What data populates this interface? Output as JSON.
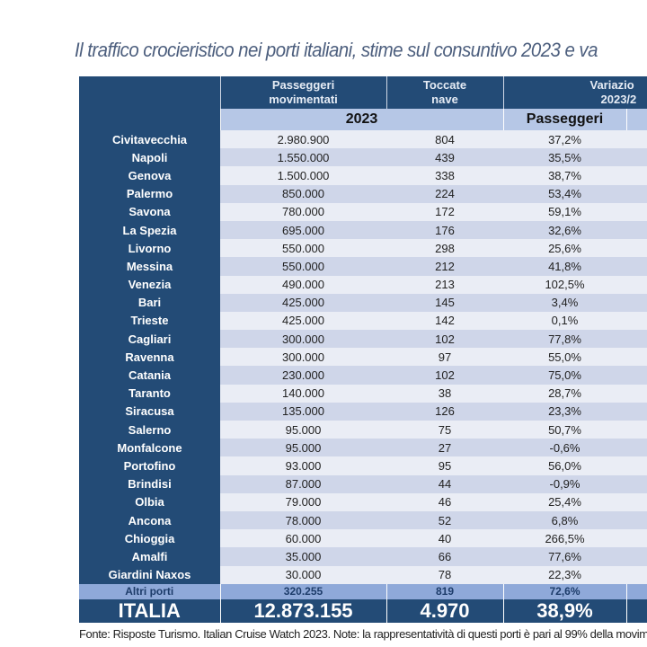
{
  "title": "Il traffico crocieristico nei porti italiani, stime sul consuntivo 2023 e va",
  "header": {
    "passeggeri_movimentati": "Passeggeri movimentati",
    "toccate_nave": "Toccate nave",
    "variazione": "Variazio",
    "variazione_period": "2023/2",
    "year": "2023",
    "passeggeri": "Passeggeri"
  },
  "rows": [
    {
      "port": "Civitavecchia",
      "passengers": "2.980.900",
      "calls": "804",
      "var": "37,2%"
    },
    {
      "port": "Napoli",
      "passengers": "1.550.000",
      "calls": "439",
      "var": "35,5%"
    },
    {
      "port": "Genova",
      "passengers": "1.500.000",
      "calls": "338",
      "var": "38,7%"
    },
    {
      "port": "Palermo",
      "passengers": "850.000",
      "calls": "224",
      "var": "53,4%"
    },
    {
      "port": "Savona",
      "passengers": "780.000",
      "calls": "172",
      "var": "59,1%"
    },
    {
      "port": "La Spezia",
      "passengers": "695.000",
      "calls": "176",
      "var": "32,6%"
    },
    {
      "port": "Livorno",
      "passengers": "550.000",
      "calls": "298",
      "var": "25,6%"
    },
    {
      "port": "Messina",
      "passengers": "550.000",
      "calls": "212",
      "var": "41,8%"
    },
    {
      "port": "Venezia",
      "passengers": "490.000",
      "calls": "213",
      "var": "102,5%"
    },
    {
      "port": "Bari",
      "passengers": "425.000",
      "calls": "145",
      "var": "3,4%"
    },
    {
      "port": "Trieste",
      "passengers": "425.000",
      "calls": "142",
      "var": "0,1%"
    },
    {
      "port": "Cagliari",
      "passengers": "300.000",
      "calls": "102",
      "var": "77,8%"
    },
    {
      "port": "Ravenna",
      "passengers": "300.000",
      "calls": "97",
      "var": "55,0%"
    },
    {
      "port": "Catania",
      "passengers": "230.000",
      "calls": "102",
      "var": "75,0%"
    },
    {
      "port": "Taranto",
      "passengers": "140.000",
      "calls": "38",
      "var": "28,7%"
    },
    {
      "port": "Siracusa",
      "passengers": "135.000",
      "calls": "126",
      "var": "23,3%"
    },
    {
      "port": "Salerno",
      "passengers": "95.000",
      "calls": "75",
      "var": "50,7%"
    },
    {
      "port": "Monfalcone",
      "passengers": "95.000",
      "calls": "27",
      "var": "-0,6%"
    },
    {
      "port": "Portofino",
      "passengers": "93.000",
      "calls": "95",
      "var": "56,0%"
    },
    {
      "port": "Brindisi",
      "passengers": "87.000",
      "calls": "44",
      "var": "-0,9%"
    },
    {
      "port": "Olbia",
      "passengers": "79.000",
      "calls": "46",
      "var": "25,4%"
    },
    {
      "port": "Ancona",
      "passengers": "78.000",
      "calls": "52",
      "var": "6,8%"
    },
    {
      "port": "Chioggia",
      "passengers": "60.000",
      "calls": "40",
      "var": "266,5%"
    },
    {
      "port": "Amalfi",
      "passengers": "35.000",
      "calls": "66",
      "var": "77,6%"
    },
    {
      "port": "Giardini Naxos",
      "passengers": "30.000",
      "calls": "78",
      "var": "22,3%"
    }
  ],
  "altri": {
    "port": "Altri porti",
    "passengers": "320.255",
    "calls": "819",
    "var": "72,6%"
  },
  "italia": {
    "port": "ITALIA",
    "passengers": "12.873.155",
    "calls": "4.970",
    "var": "38,9%"
  },
  "footer": "Fonte: Risposte Turismo. Italian Cruise Watch 2023. Note: la rappresentatività di questi porti è pari al 99% della movim",
  "colors": {
    "header": "#234b76",
    "subheader": "#b6c7e6",
    "row_light": "#eaedf5",
    "row_dark": "#cfd6e9",
    "altri": "#8fa9d9"
  }
}
